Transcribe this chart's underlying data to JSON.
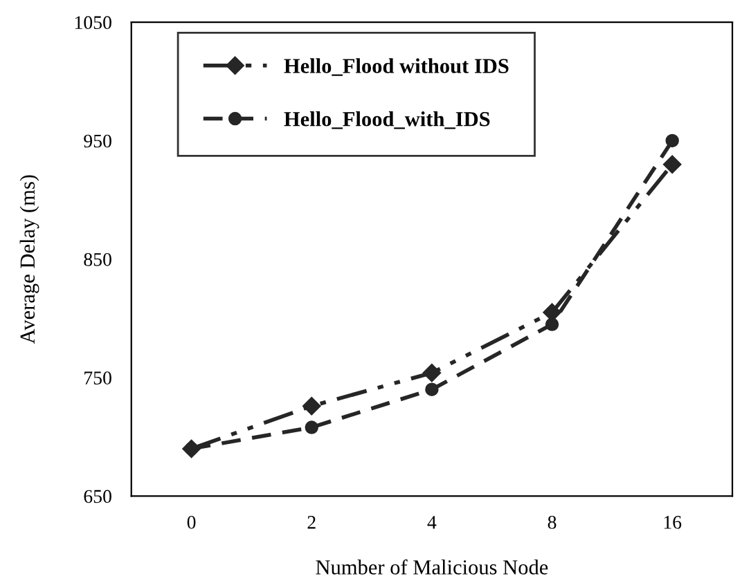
{
  "chart_data": {
    "type": "line",
    "xlabel": "Number of Malicious Node",
    "ylabel": "Average Delay (ms)",
    "categories": [
      "0",
      "2",
      "4",
      "8",
      "16"
    ],
    "series": [
      {
        "name": "Hello_Flood without IDS",
        "color": "#262626",
        "values": [
          690,
          726,
          754,
          805,
          930
        ],
        "marker": "diamond",
        "line_style": "dashdot"
      },
      {
        "name": "Hello_Flood_with_IDS",
        "color": "#262626",
        "values": [
          690,
          708,
          740,
          795,
          950
        ],
        "marker": "circle",
        "line_style": "dashed"
      }
    ],
    "ylim": [
      650,
      1050
    ],
    "yticks": [
      650,
      750,
      850,
      950,
      1050
    ],
    "grid": false,
    "legend": "top left"
  }
}
